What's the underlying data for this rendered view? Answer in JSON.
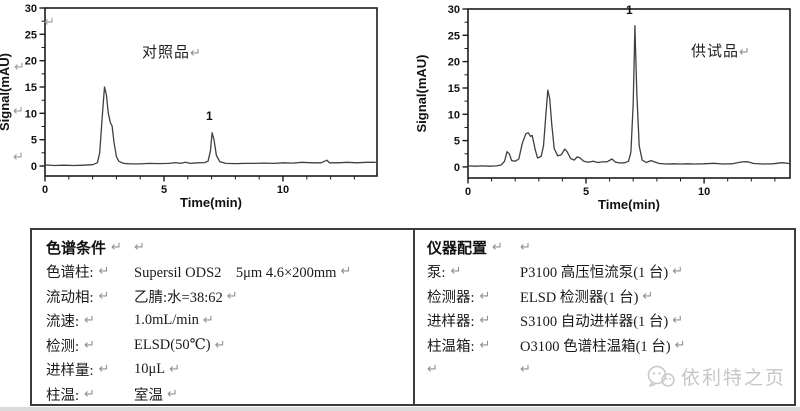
{
  "marks": {
    "return": "↵"
  },
  "chart_data": [
    {
      "type": "line",
      "sample_label": "对照品",
      "peak_label": "1",
      "xlabel": "Time(min)",
      "ylabel": "Signal(mAU)",
      "xlim": [
        0,
        13.95
      ],
      "ylim": [
        -1.9,
        30
      ],
      "x_major_ticks": [
        0,
        5,
        10
      ],
      "x_minor_step": 1,
      "y_major_ticks": [
        0,
        5,
        10,
        15,
        20,
        25,
        30
      ],
      "y_minor_step": 2.5,
      "peaks": [
        {
          "t": 2.5,
          "s": 15.0
        },
        {
          "t": 7.0,
          "s": 6.3,
          "label": "1"
        }
      ],
      "series": [
        [
          0,
          0.2
        ],
        [
          0.4,
          0.1
        ],
        [
          0.8,
          0.15
        ],
        [
          1.2,
          0.1
        ],
        [
          1.6,
          0.15
        ],
        [
          2.0,
          0.25
        ],
        [
          2.2,
          0.6
        ],
        [
          2.3,
          2.5
        ],
        [
          2.4,
          9
        ],
        [
          2.5,
          15
        ],
        [
          2.58,
          13.5
        ],
        [
          2.66,
          10
        ],
        [
          2.75,
          8.2
        ],
        [
          2.82,
          7.6
        ],
        [
          2.9,
          4.5
        ],
        [
          3.0,
          1.8
        ],
        [
          3.1,
          0.9
        ],
        [
          3.3,
          0.5
        ],
        [
          3.6,
          0.4
        ],
        [
          4.0,
          0.4
        ],
        [
          4.4,
          0.5
        ],
        [
          4.8,
          0.45
        ],
        [
          5.2,
          0.5
        ],
        [
          5.5,
          0.65
        ],
        [
          5.7,
          0.5
        ],
        [
          5.9,
          0.7
        ],
        [
          6.1,
          0.5
        ],
        [
          6.4,
          0.6
        ],
        [
          6.7,
          0.65
        ],
        [
          6.85,
          0.9
        ],
        [
          6.95,
          2.8
        ],
        [
          7.02,
          6.3
        ],
        [
          7.1,
          5
        ],
        [
          7.2,
          2
        ],
        [
          7.35,
          0.8
        ],
        [
          7.6,
          0.5
        ],
        [
          8.0,
          0.45
        ],
        [
          8.4,
          0.5
        ],
        [
          8.8,
          0.5
        ],
        [
          9.2,
          0.55
        ],
        [
          9.6,
          0.5
        ],
        [
          10.0,
          0.6
        ],
        [
          10.4,
          0.55
        ],
        [
          10.8,
          0.7
        ],
        [
          11.2,
          0.6
        ],
        [
          11.6,
          0.6
        ],
        [
          11.85,
          1.1
        ],
        [
          11.95,
          0.6
        ],
        [
          12.3,
          0.6
        ],
        [
          12.7,
          0.7
        ],
        [
          13.1,
          0.6
        ],
        [
          13.5,
          0.7
        ],
        [
          13.9,
          0.7
        ]
      ]
    },
    {
      "type": "line",
      "sample_label": "供试品",
      "peak_label": "1",
      "xlabel": "Time(min)",
      "ylabel": "Signal(mAU)",
      "xlim": [
        0,
        13.64
      ],
      "ylim": [
        -2.1,
        30
      ],
      "x_major_ticks": [
        0,
        5,
        10
      ],
      "x_minor_step": 1,
      "y_major_ticks": [
        0,
        5,
        10,
        15,
        20,
        25,
        30
      ],
      "y_minor_step": 2.5,
      "peaks": [
        {
          "t": 1.7,
          "s": 2.9
        },
        {
          "t": 2.6,
          "s": 6.5
        },
        {
          "t": 3.4,
          "s": 14.6
        },
        {
          "t": 4.1,
          "s": 3.4
        },
        {
          "t": 4.6,
          "s": 1.9
        },
        {
          "t": 7.05,
          "s": 26.8,
          "label": "1"
        }
      ],
      "series": [
        [
          0,
          0.2
        ],
        [
          0.3,
          0.15
        ],
        [
          0.6,
          0.2
        ],
        [
          0.9,
          0.15
        ],
        [
          1.2,
          0.2
        ],
        [
          1.4,
          0.35
        ],
        [
          1.55,
          1.1
        ],
        [
          1.65,
          2.9
        ],
        [
          1.75,
          2.5
        ],
        [
          1.85,
          1.2
        ],
        [
          2.0,
          1.1
        ],
        [
          2.15,
          1.5
        ],
        [
          2.3,
          4.5
        ],
        [
          2.45,
          6.3
        ],
        [
          2.55,
          6.5
        ],
        [
          2.65,
          5.8
        ],
        [
          2.72,
          6.0
        ],
        [
          2.85,
          3.2
        ],
        [
          2.95,
          1.7
        ],
        [
          3.1,
          2.0
        ],
        [
          3.2,
          4.0
        ],
        [
          3.3,
          10
        ],
        [
          3.38,
          14.6
        ],
        [
          3.46,
          13
        ],
        [
          3.55,
          8
        ],
        [
          3.65,
          3.5
        ],
        [
          3.8,
          2.1
        ],
        [
          3.95,
          2.3
        ],
        [
          4.1,
          3.4
        ],
        [
          4.2,
          2.9
        ],
        [
          4.35,
          1.6
        ],
        [
          4.5,
          1.3
        ],
        [
          4.62,
          1.9
        ],
        [
          4.75,
          1.7
        ],
        [
          4.9,
          1.1
        ],
        [
          5.1,
          0.9
        ],
        [
          5.3,
          1.1
        ],
        [
          5.5,
          0.85
        ],
        [
          5.7,
          0.95
        ],
        [
          5.9,
          1.0
        ],
        [
          6.1,
          1.5
        ],
        [
          6.25,
          0.9
        ],
        [
          6.45,
          0.75
        ],
        [
          6.65,
          0.8
        ],
        [
          6.8,
          1.1
        ],
        [
          6.9,
          2.8
        ],
        [
          7.0,
          12
        ],
        [
          7.07,
          26.8
        ],
        [
          7.15,
          14
        ],
        [
          7.25,
          4
        ],
        [
          7.38,
          1.3
        ],
        [
          7.55,
          0.85
        ],
        [
          7.75,
          1.2
        ],
        [
          7.9,
          0.95
        ],
        [
          8.1,
          0.65
        ],
        [
          8.4,
          0.55
        ],
        [
          8.7,
          0.6
        ],
        [
          9.0,
          0.55
        ],
        [
          9.3,
          0.6
        ],
        [
          9.6,
          0.55
        ],
        [
          10.0,
          0.6
        ],
        [
          10.4,
          0.7
        ],
        [
          10.8,
          0.55
        ],
        [
          11.2,
          0.6
        ],
        [
          11.6,
          0.95
        ],
        [
          11.85,
          1.0
        ],
        [
          12.1,
          0.65
        ],
        [
          12.5,
          0.55
        ],
        [
          12.9,
          0.6
        ],
        [
          13.3,
          0.8
        ],
        [
          13.6,
          0.65
        ]
      ]
    }
  ],
  "tables": {
    "left": {
      "title": "色谱条件",
      "rows": [
        {
          "label": "色谱柱:",
          "value": "Supersil ODS2　5μm 4.6×200mm"
        },
        {
          "label": "流动相:",
          "value": "乙腈:水=38:62"
        },
        {
          "label": "流速:",
          "value": "1.0mL/min"
        },
        {
          "label": "检测:",
          "value": "ELSD(50℃)"
        },
        {
          "label": "进样量:",
          "value": "10μL"
        },
        {
          "label": "柱温:",
          "value": "室温"
        }
      ]
    },
    "right": {
      "title": "仪器配置",
      "rows": [
        {
          "label": "泵:",
          "value": "P3100 高压恒流泵(1 台)"
        },
        {
          "label": "检测器:",
          "value": "ELSD 检测器(1 台)"
        },
        {
          "label": "进样器:",
          "value": "S3100 自动进样器(1 台)"
        },
        {
          "label": "柱温箱:",
          "value": "O3100 色谱柱温箱(1 台)"
        }
      ],
      "watermark": {
        "text": "依利特之页"
      }
    }
  }
}
